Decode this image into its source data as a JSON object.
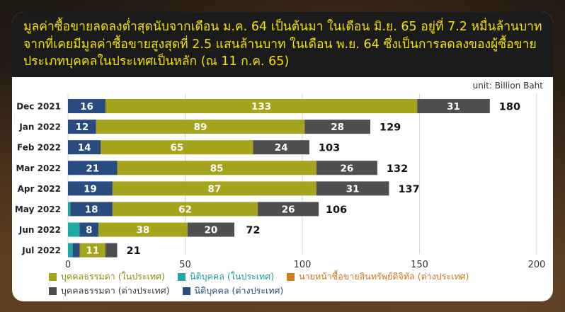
{
  "header": {
    "title": "มูลค่าซื้อขายลดลงต่ำสุดนับจากเดือน ม.ค. 64 เป็นต้นมา ในเดือน มิ.ย. 65 อยู่ที่ 7.2 หมื่นล้านบาท จากที่เคยมีมูลค่าซื้อขายสูงสุดที่ 2.5 แสนล้านบาท ในเดือน พ.ย. 64 ซึ่งเป็นการลดลงของผู้ซื้อขายประเภทบุคคลในประเทศเป็นหลัก (ณ 11 ก.ค. 65)"
  },
  "unit_text": "unit:  Billion Baht",
  "chart_data": {
    "type": "bar",
    "orientation": "horizontal",
    "stacked": true,
    "categories": [
      "Dec 2021",
      "Jan 2022",
      "Feb 2022",
      "Mar 2022",
      "Apr 2022",
      "May 2022",
      "Jun 2022",
      "Jul 2022"
    ],
    "series": [
      {
        "name": "นิติบุคคล (ในประเทศ)",
        "color": "#1fa9a4",
        "values": [
          0,
          0,
          0,
          0,
          0,
          1,
          5,
          2
        ],
        "labeled": [
          false,
          false,
          false,
          false,
          false,
          false,
          false,
          false
        ]
      },
      {
        "name": "นิติบุคคล (ต่างประเทศ)",
        "color": "#284b80",
        "values": [
          16,
          12,
          14,
          21,
          19,
          18,
          8,
          3
        ],
        "labeled": [
          true,
          true,
          true,
          true,
          true,
          true,
          true,
          false
        ]
      },
      {
        "name": "บุคคลธรรมดา (ในประเทศ)",
        "color": "#a5a41d",
        "values": [
          133,
          89,
          65,
          85,
          87,
          62,
          38,
          11
        ],
        "labeled": [
          true,
          true,
          true,
          true,
          true,
          true,
          true,
          true
        ]
      },
      {
        "name": "บุคคลธรรมดา (ต่างประเทศ)",
        "color": "#4f4f4f",
        "values": [
          31,
          28,
          24,
          26,
          31,
          26,
          20,
          5
        ],
        "labeled": [
          true,
          true,
          true,
          true,
          true,
          true,
          true,
          false
        ]
      },
      {
        "name": "นายหน้าซื้อขายสินทรัพย์ดิจิทัล (ต่างประเทศ)",
        "color": "#cf7c1d",
        "values": [
          0,
          0,
          0,
          0,
          0,
          0,
          0,
          0
        ],
        "labeled": [
          false,
          false,
          false,
          false,
          false,
          false,
          false,
          false
        ]
      }
    ],
    "totals": [
      180,
      129,
      103,
      132,
      137,
      106,
      72,
      21
    ],
    "xlim": [
      0,
      200
    ],
    "xticks": [
      0,
      50,
      100,
      150,
      200
    ],
    "grid": true
  },
  "legend": [
    {
      "label": "บุคคลธรรมดา (ในประเทศ)",
      "color": "#a5a41d",
      "text_color": "#8c8b10"
    },
    {
      "label": "นิติบุคคล (ในประเทศ)",
      "color": "#1fa9a4",
      "text_color": "#1a9a95"
    },
    {
      "label": "นายหน้าซื้อขายสินทรัพย์ดิจิทัล (ต่างประเทศ)",
      "color": "#cf7c1d",
      "text_color": "#c9761a"
    },
    {
      "label": "บุคคลธรรมดา (ต่างประเทศ)",
      "color": "#4f4f4f",
      "text_color": "#3c3c3c"
    },
    {
      "label": "นิติบุคคล (ต่างประเทศ)",
      "color": "#284b80",
      "text_color": "#284b80"
    }
  ]
}
